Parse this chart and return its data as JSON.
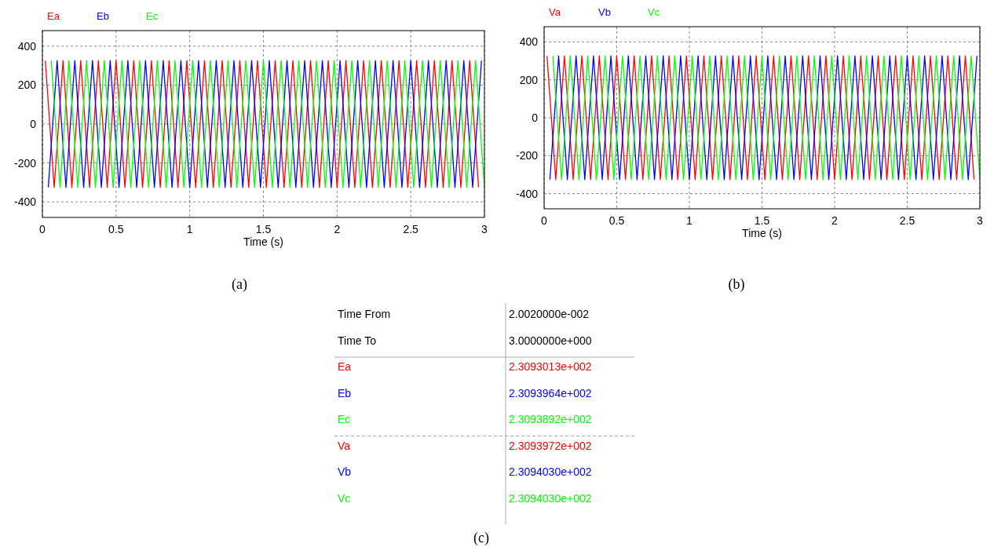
{
  "chart_data": [
    {
      "type": "line",
      "xlabel": "Time (s)",
      "xlim": [
        0,
        3
      ],
      "xticks": [
        0,
        0.5,
        1,
        1.5,
        2,
        2.5,
        3
      ],
      "ylim": [
        -480,
        480
      ],
      "yticks": [
        -400,
        -200,
        0,
        200,
        400
      ],
      "grid": true,
      "legend": "top left",
      "line_style": "solid",
      "annotations": [
        "(a)"
      ],
      "series": [
        {
          "name": "Ea",
          "color": "#ff0000",
          "x": [
            0.02,
            0.08,
            0.14,
            0.2,
            0.26,
            0.32,
            0.38,
            0.44,
            0.5,
            0.56,
            0.62,
            0.68,
            0.74,
            0.8,
            0.86,
            0.92,
            0.98,
            1.04,
            1.1,
            1.16,
            1.22,
            1.28,
            1.34,
            1.4,
            1.46,
            1.52,
            1.58,
            1.64,
            1.7,
            1.76,
            1.82,
            1.88,
            1.94,
            2,
            2.06,
            2.12,
            2.18,
            2.24,
            2.3,
            2.36,
            2.42,
            2.48,
            2.54,
            2.6,
            2.66,
            2.72,
            2.78,
            2.84,
            2.9,
            2.96
          ],
          "values": [
            326,
            -326,
            326,
            -326,
            326,
            -326,
            326,
            -326,
            326,
            -326,
            326,
            -326,
            326,
            -326,
            326,
            -326,
            326,
            -326,
            326,
            -326,
            326,
            -326,
            326,
            -326,
            326,
            -326,
            326,
            -326,
            326,
            -326,
            326,
            -326,
            326,
            -326,
            326,
            -326,
            326,
            -326,
            326,
            -326,
            326,
            -326,
            326,
            -326,
            326,
            -326,
            326,
            -326,
            326,
            -326
          ]
        },
        {
          "name": "Eb",
          "color": "#0000ff",
          "x": [
            0.04,
            0.1,
            0.16,
            0.22,
            0.28,
            0.34,
            0.4,
            0.46,
            0.52,
            0.58,
            0.64,
            0.7,
            0.76,
            0.82,
            0.88,
            0.94,
            1,
            1.06,
            1.12,
            1.18,
            1.24,
            1.3,
            1.36,
            1.42,
            1.48,
            1.54,
            1.6,
            1.66,
            1.72,
            1.78,
            1.84,
            1.9,
            1.96,
            2.02,
            2.08,
            2.14,
            2.2,
            2.26,
            2.32,
            2.38,
            2.44,
            2.5,
            2.56,
            2.62,
            2.68,
            2.74,
            2.8,
            2.86,
            2.92,
            2.98
          ],
          "values": [
            -326,
            326,
            -326,
            326,
            -326,
            326,
            -326,
            326,
            -326,
            326,
            -326,
            326,
            -326,
            326,
            -326,
            326,
            -326,
            326,
            -326,
            326,
            -326,
            326,
            -326,
            326,
            -326,
            326,
            -326,
            326,
            -326,
            326,
            -326,
            326,
            -326,
            326,
            -326,
            326,
            -326,
            326,
            -326,
            326,
            -326,
            326,
            -326,
            326,
            -326,
            326,
            -326,
            326,
            -326,
            326
          ]
        },
        {
          "name": "Ec",
          "color": "#00ff00",
          "x": [
            0.06,
            0.12,
            0.18,
            0.24,
            0.3,
            0.36,
            0.42,
            0.48,
            0.54,
            0.6,
            0.66,
            0.72,
            0.78,
            0.84,
            0.9,
            0.96,
            1.02,
            1.08,
            1.14,
            1.2,
            1.26,
            1.32,
            1.38,
            1.44,
            1.5,
            1.56,
            1.62,
            1.68,
            1.74,
            1.8,
            1.86,
            1.92,
            1.98,
            2.04,
            2.1,
            2.16,
            2.22,
            2.28,
            2.34,
            2.4,
            2.46,
            2.52,
            2.58,
            2.64,
            2.7,
            2.76,
            2.82,
            2.88,
            2.94,
            3
          ],
          "values": [
            326,
            -326,
            326,
            -326,
            326,
            -326,
            326,
            -326,
            326,
            -326,
            326,
            -326,
            326,
            -326,
            326,
            -326,
            326,
            -326,
            326,
            -326,
            326,
            -326,
            326,
            -326,
            326,
            -326,
            326,
            -326,
            326,
            -326,
            326,
            -326,
            326,
            -326,
            326,
            -326,
            326,
            -326,
            326,
            -326,
            326,
            -326,
            326,
            -326,
            326,
            -326,
            326,
            -326,
            326,
            -326
          ]
        }
      ]
    },
    {
      "type": "line",
      "xlabel": "Time (s)",
      "xlim": [
        0,
        3
      ],
      "xticks": [
        0,
        0.5,
        1,
        1.5,
        2,
        2.5,
        3
      ],
      "ylim": [
        -480,
        480
      ],
      "yticks": [
        -400,
        -200,
        0,
        200,
        400
      ],
      "grid": true,
      "legend": "top left",
      "line_style": "solid",
      "annotations": [
        "(b)"
      ],
      "series": [
        {
          "name": "Va",
          "color": "#ff0000",
          "x": [
            0.02,
            0.08,
            0.14,
            0.2,
            0.26,
            0.32,
            0.38,
            0.44,
            0.5,
            0.56,
            0.62,
            0.68,
            0.74,
            0.8,
            0.86,
            0.92,
            0.98,
            1.04,
            1.1,
            1.16,
            1.22,
            1.28,
            1.34,
            1.4,
            1.46,
            1.52,
            1.58,
            1.64,
            1.7,
            1.76,
            1.82,
            1.88,
            1.94,
            2,
            2.06,
            2.12,
            2.18,
            2.24,
            2.3,
            2.36,
            2.42,
            2.48,
            2.54,
            2.6,
            2.66,
            2.72,
            2.78,
            2.84,
            2.9,
            2.96
          ],
          "values": [
            326,
            -326,
            326,
            -326,
            326,
            -326,
            326,
            -326,
            326,
            -326,
            326,
            -326,
            326,
            -326,
            326,
            -326,
            326,
            -326,
            326,
            -326,
            326,
            -326,
            326,
            -326,
            326,
            -326,
            326,
            -326,
            326,
            -326,
            326,
            -326,
            326,
            -326,
            326,
            -326,
            326,
            -326,
            326,
            -326,
            326,
            -326,
            326,
            -326,
            326,
            -326,
            326,
            -326,
            326,
            -326
          ]
        },
        {
          "name": "Vb",
          "color": "#0000ff",
          "x": [
            0.04,
            0.1,
            0.16,
            0.22,
            0.28,
            0.34,
            0.4,
            0.46,
            0.52,
            0.58,
            0.64,
            0.7,
            0.76,
            0.82,
            0.88,
            0.94,
            1,
            1.06,
            1.12,
            1.18,
            1.24,
            1.3,
            1.36,
            1.42,
            1.48,
            1.54,
            1.6,
            1.66,
            1.72,
            1.78,
            1.84,
            1.9,
            1.96,
            2.02,
            2.08,
            2.14,
            2.2,
            2.26,
            2.32,
            2.38,
            2.44,
            2.5,
            2.56,
            2.62,
            2.68,
            2.74,
            2.8,
            2.86,
            2.92,
            2.98
          ],
          "values": [
            -326,
            326,
            -326,
            326,
            -326,
            326,
            -326,
            326,
            -326,
            326,
            -326,
            326,
            -326,
            326,
            -326,
            326,
            -326,
            326,
            -326,
            326,
            -326,
            326,
            -326,
            326,
            -326,
            326,
            -326,
            326,
            -326,
            326,
            -326,
            326,
            -326,
            326,
            -326,
            326,
            -326,
            326,
            -326,
            326,
            -326,
            326,
            -326,
            326,
            -326,
            326,
            -326,
            326,
            -326,
            326
          ]
        },
        {
          "name": "Vc",
          "color": "#00ff00",
          "x": [
            0.06,
            0.12,
            0.18,
            0.24,
            0.3,
            0.36,
            0.42,
            0.48,
            0.54,
            0.6,
            0.66,
            0.72,
            0.78,
            0.84,
            0.9,
            0.96,
            1.02,
            1.08,
            1.14,
            1.2,
            1.26,
            1.32,
            1.38,
            1.44,
            1.5,
            1.56,
            1.62,
            1.68,
            1.74,
            1.8,
            1.86,
            1.92,
            1.98,
            2.04,
            2.1,
            2.16,
            2.22,
            2.28,
            2.34,
            2.4,
            2.46,
            2.52,
            2.58,
            2.64,
            2.7,
            2.76,
            2.82,
            2.88,
            2.94,
            3
          ],
          "values": [
            326,
            -326,
            326,
            -326,
            326,
            -326,
            326,
            -326,
            326,
            -326,
            326,
            -326,
            326,
            -326,
            326,
            -326,
            326,
            -326,
            326,
            -326,
            326,
            -326,
            326,
            -326,
            326,
            -326,
            326,
            -326,
            326,
            -326,
            326,
            -326,
            326,
            -326,
            326,
            -326,
            326,
            -326,
            326,
            -326,
            326,
            -326,
            326,
            -326,
            326,
            -326,
            326,
            -326,
            326,
            -326
          ]
        }
      ]
    },
    {
      "type": "other",
      "annotations": [
        "(c)"
      ],
      "categories": [
        "Time From",
        "Time To",
        "Ea",
        "Eb",
        "Ec",
        "Va",
        "Vb",
        "Vc"
      ],
      "value_labels": [
        "2.0020000e-002",
        "3.0000000e+000",
        "2.3093013e+002",
        "2.3093964e+002",
        "2.3093892e+002",
        "2.3093972e+002",
        "2.3094030e+002",
        "2.3094030e+002"
      ],
      "colors": [
        "#000000",
        "#000000",
        "#ff0000",
        "#0000ff",
        "#00ff00",
        "#ff0000",
        "#0000ff",
        "#00ff00"
      ]
    }
  ]
}
